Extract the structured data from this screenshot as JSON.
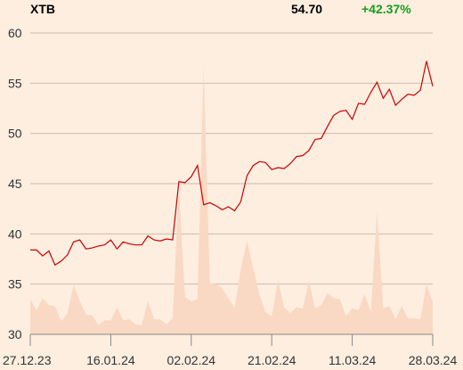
{
  "header": {
    "ticker": "XTB",
    "price": "54.70",
    "change": "+42.37%"
  },
  "colors": {
    "background": "#fdeee0",
    "price_line": "#cc0000",
    "volume_area": "#f9d9c3",
    "grid": "#c9bbb0",
    "change_positive": "#14a014"
  },
  "chart_data": {
    "type": "line",
    "title": "",
    "xlabel": "",
    "ylabel": "",
    "ylim": [
      30,
      60
    ],
    "y_ticks": [
      30,
      35,
      40,
      45,
      50,
      55,
      60
    ],
    "x_tick_labels": [
      "27.12.23",
      "16.01.24",
      "02.02.24",
      "21.02.24",
      "11.03.24",
      "28.03.24"
    ],
    "grid": true,
    "series": [
      {
        "kind": "price",
        "values": [
          38.4,
          38.4,
          37.8,
          38.3,
          36.9,
          37.3,
          37.9,
          39.2,
          39.4,
          38.5,
          38.6,
          38.8,
          38.9,
          39.4,
          38.5,
          39.2,
          39.0,
          38.9,
          38.9,
          39.8,
          39.4,
          39.3,
          39.5,
          39.4,
          45.2,
          45.1,
          45.7,
          46.8,
          42.9,
          43.1,
          42.8,
          42.4,
          42.7,
          42.3,
          43.2,
          45.8,
          46.8,
          47.2,
          47.1,
          46.4,
          46.6,
          46.5,
          47.0,
          47.7,
          47.8,
          48.3,
          49.4,
          49.5,
          50.7,
          51.8,
          52.2,
          52.3,
          51.4,
          53.0,
          52.9,
          54.1,
          55.1,
          53.5,
          54.4,
          52.8,
          53.4,
          53.9,
          53.8,
          54.3,
          57.2,
          54.7
        ]
      },
      {
        "kind": "volume",
        "values": [
          33.5,
          32.4,
          33.6,
          32.9,
          32.8,
          31.3,
          32.1,
          34.9,
          33.3,
          32.0,
          31.9,
          30.9,
          31.4,
          31.4,
          32.7,
          31.4,
          31.5,
          31.0,
          30.9,
          33.3,
          31.5,
          31.5,
          31.0,
          31.6,
          44.5,
          33.7,
          33.3,
          33.5,
          56.6,
          35.1,
          35.0,
          34.6,
          33.6,
          32.6,
          36.5,
          39.3,
          36.6,
          34.0,
          32.2,
          31.8,
          35.4,
          32.7,
          32.1,
          32.7,
          32.6,
          35.3,
          32.6,
          32.9,
          34.1,
          33.6,
          33.5,
          31.8,
          32.6,
          32.4,
          34.0,
          32.2,
          42.2,
          32.6,
          32.8,
          31.5,
          32.8,
          31.6,
          31.6,
          31.5,
          35.0,
          33.2
        ]
      }
    ]
  }
}
